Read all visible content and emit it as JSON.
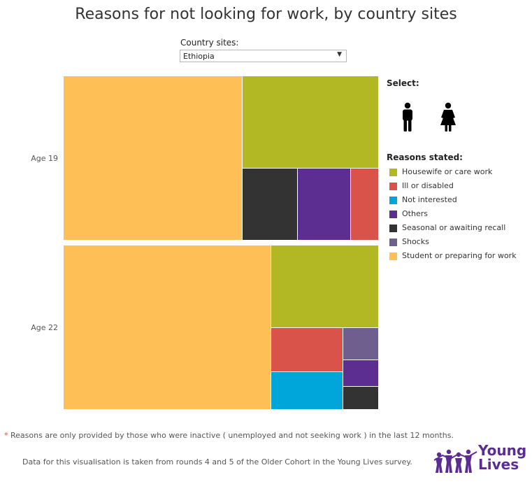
{
  "title": "Reasons for not looking for work, by country sites",
  "filter": {
    "label": "Country sites:",
    "selected": "Ethiopia"
  },
  "legend": {
    "select_title": "Select:",
    "reasons_title": "Reasons stated:",
    "items": [
      {
        "label": "Housewife or care work",
        "color": "#b2b823"
      },
      {
        "label": "Ill or disabled",
        "color": "#d9534a"
      },
      {
        "label": "Not interested",
        "color": "#00a6d9"
      },
      {
        "label": "Others",
        "color": "#5d2e91"
      },
      {
        "label": "Seasonal or awaiting recall",
        "color": "#333333"
      },
      {
        "label": "Shocks",
        "color": "#6e5f8f"
      },
      {
        "label": "Student or preparing for work",
        "color": "#ffbf57"
      }
    ]
  },
  "chart_data": {
    "type": "treemap",
    "title": "Reasons for not looking for work, by country sites",
    "rows": [
      {
        "label": "Age 19",
        "values": [
          {
            "reason": "Student or preparing for work",
            "value": 56.8
          },
          {
            "reason": "Housewife or care work",
            "value": 24.3
          },
          {
            "reason": "Seasonal or awaiting recall",
            "value": 7.6
          },
          {
            "reason": "Others",
            "value": 7.4
          },
          {
            "reason": "Ill or disabled",
            "value": 3.9
          }
        ]
      },
      {
        "label": "Age 22",
        "values": [
          {
            "reason": "Student or preparing for work",
            "value": 65.8
          },
          {
            "reason": "Housewife or care work",
            "value": 17.2
          },
          {
            "reason": "Ill or disabled",
            "value": 6.1
          },
          {
            "reason": "Not interested",
            "value": 5.3
          },
          {
            "reason": "Shocks",
            "value": 2.2
          },
          {
            "reason": "Others",
            "value": 1.8
          },
          {
            "reason": "Seasonal or awaiting recall",
            "value": 1.6
          }
        ]
      }
    ]
  },
  "footnote": {
    "star": "*",
    "text": " Reasons are only provided by those who were inactive ( unemployed and not seeking work ) in the last 12 months."
  },
  "datanote": "Data for this visualisation is taken from rounds 4 and 5 of the Older Cohort in the Young Lives survey.",
  "logo": {
    "line1": "Young",
    "line2": "Lives"
  }
}
